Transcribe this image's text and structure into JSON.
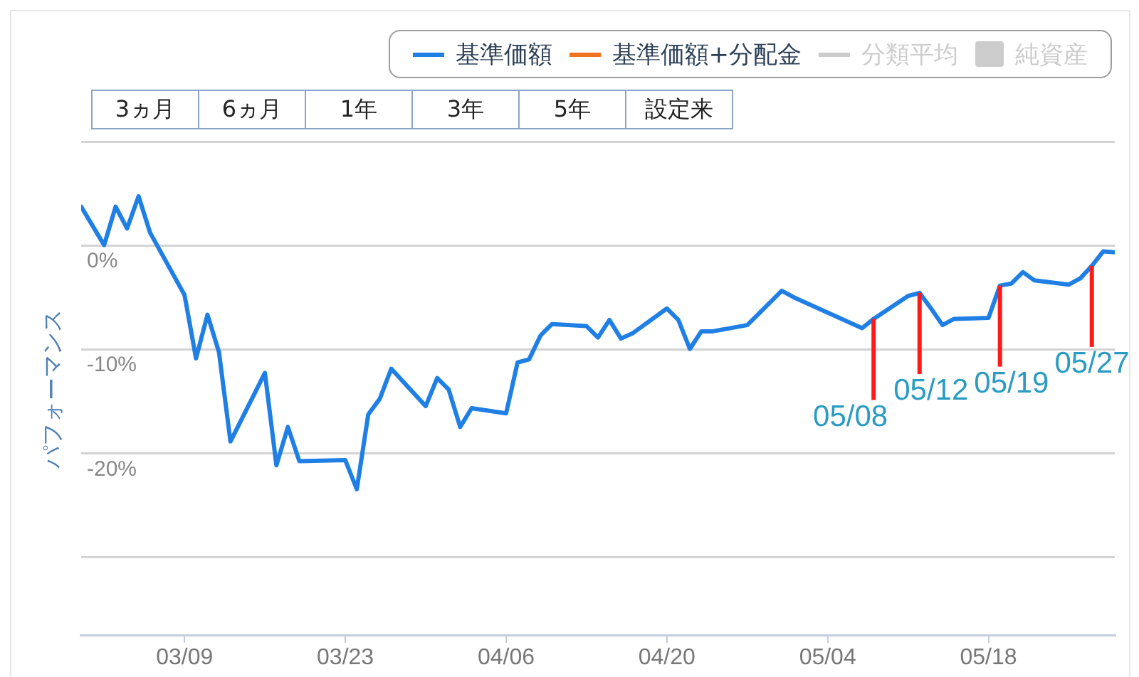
{
  "chart_data": {
    "type": "line",
    "ylabel": "パフォーマンス",
    "legend": "top right",
    "grid": "y",
    "marker": "none",
    "x": [
      "--02-28",
      "--03-02",
      "--03-03",
      "--03-04",
      "--03-05",
      "--03-06",
      "--03-09",
      "--03-10",
      "--03-11",
      "--03-12",
      "--03-13",
      "--03-16",
      "--03-17",
      "--03-18",
      "--03-19",
      "--03-23",
      "--03-24",
      "--03-25",
      "--03-26",
      "--03-27",
      "--03-30",
      "--03-31",
      "--04-01",
      "--04-02",
      "--04-03",
      "--04-06",
      "--04-07",
      "--04-08",
      "--04-09",
      "--04-10",
      "--04-13",
      "--04-14",
      "--04-15",
      "--04-16",
      "--04-17",
      "--04-20",
      "--04-21",
      "--04-22",
      "--04-23",
      "--04-24",
      "--04-27",
      "--04-28",
      "--04-30",
      "--05-01",
      "--05-07",
      "--05-08",
      "--05-11",
      "--05-12",
      "--05-13",
      "--05-14",
      "--05-15",
      "--05-18",
      "--05-19",
      "--05-20",
      "--05-21",
      "--05-22",
      "--05-25",
      "--05-26",
      "--05-27",
      "--05-28",
      "--05-29"
    ],
    "series": [
      {
        "name": "基準価額",
        "color": "#1f7fe5",
        "values": [
          3.8,
          0.1,
          3.8,
          1.7,
          4.8,
          1.3,
          -4.7,
          -10.8,
          -6.6,
          -10.2,
          -18.8,
          -12.2,
          -21.1,
          -17.4,
          -20.7,
          -20.6,
          -23.4,
          -16.2,
          -14.7,
          -11.8,
          -15.4,
          -12.7,
          -13.8,
          -17.4,
          -15.6,
          -16.1,
          -11.2,
          -10.9,
          -8.6,
          -7.5,
          -7.7,
          -8.8,
          -7.1,
          -8.9,
          -8.4,
          -6.0,
          -7.1,
          -9.9,
          -8.2,
          -8.2,
          -7.6,
          -6.5,
          -4.3,
          -4.9,
          -7.9,
          -7.0,
          -4.8,
          -4.5,
          -6.0,
          -7.6,
          -7.0,
          -6.9,
          -3.8,
          -3.6,
          -2.5,
          -3.3,
          -3.7,
          -3.1,
          -1.9,
          -0.5,
          -0.6
        ]
      },
      {
        "name": "基準価額+分配金",
        "color": "#f07322",
        "values": [
          null,
          null,
          null,
          null,
          null,
          null,
          null,
          null,
          null,
          null,
          null,
          null,
          null,
          null,
          null,
          null,
          null,
          null,
          null,
          null,
          null,
          null,
          null,
          null,
          null,
          null,
          null,
          null,
          null,
          null,
          null,
          null,
          null,
          null,
          null,
          null,
          null,
          null,
          null,
          null,
          null,
          null,
          null,
          null,
          null,
          null,
          null,
          null,
          null,
          null,
          null,
          null,
          null,
          null,
          null,
          null,
          null,
          null,
          null,
          null,
          null
        ]
      },
      {
        "name": "分類平均",
        "color": "#cccccc",
        "values": [
          null,
          null,
          null,
          null,
          null,
          null,
          null,
          null,
          null,
          null,
          null,
          null,
          null,
          null,
          null,
          null,
          null,
          null,
          null,
          null,
          null,
          null,
          null,
          null,
          null,
          null,
          null,
          null,
          null,
          null,
          null,
          null,
          null,
          null,
          null,
          null,
          null,
          null,
          null,
          null,
          null,
          null,
          null,
          null,
          null,
          null,
          null,
          null,
          null,
          null,
          null,
          null,
          null,
          null,
          null,
          null,
          null,
          null,
          null,
          null,
          null
        ]
      },
      {
        "name": "純資産",
        "type": "area",
        "color": "#cccccc",
        "values": [
          null,
          null,
          null,
          null,
          null,
          null,
          null,
          null,
          null,
          null,
          null,
          null,
          null,
          null,
          null,
          null,
          null,
          null,
          null,
          null,
          null,
          null,
          null,
          null,
          null,
          null,
          null,
          null,
          null,
          null,
          null,
          null,
          null,
          null,
          null,
          null,
          null,
          null,
          null,
          null,
          null,
          null,
          null,
          null,
          null,
          null,
          null,
          null,
          null,
          null,
          null,
          null,
          null,
          null,
          null,
          null,
          null,
          null,
          null,
          null,
          null
        ]
      }
    ],
    "xlim": [
      "--02-28",
      "--05-29"
    ],
    "xticks": [
      {
        "value": "--03-09",
        "label": "03/09"
      },
      {
        "value": "--03-23",
        "label": "03/23"
      },
      {
        "value": "--04-06",
        "label": "04/06"
      },
      {
        "value": "--04-20",
        "label": "04/20"
      },
      {
        "value": "--05-04",
        "label": "05/04"
      },
      {
        "value": "--05-18",
        "label": "05/18"
      }
    ],
    "ylim": [
      -37.5,
      10
    ],
    "yticks": [
      {
        "value": 10,
        "label": null
      },
      {
        "value": 0,
        "label": "0%"
      },
      {
        "value": -10,
        "label": "-10%"
      },
      {
        "value": -20,
        "label": "-20%"
      },
      {
        "value": -30,
        "label": null
      }
    ],
    "annotations": [
      "3ヵ月",
      "6ヵ月",
      "1年",
      "3年",
      "5年",
      "設定来",
      {
        "text": "05/08",
        "x": "--05-08",
        "y": -7.0
      },
      {
        "text": "05/12",
        "x": "--05-12",
        "y": -4.5
      },
      {
        "text": "05/19",
        "x": "--05-19",
        "y": -3.8
      },
      {
        "text": "05/27",
        "x": "--05-27",
        "y": -1.9
      }
    ]
  }
}
